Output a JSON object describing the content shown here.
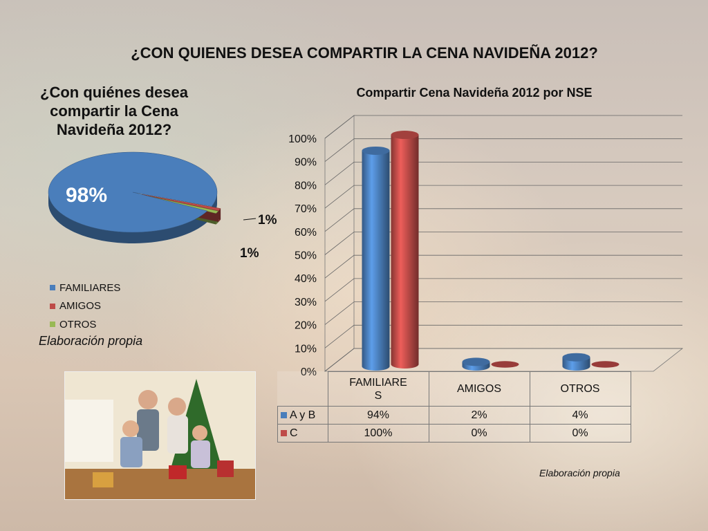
{
  "slide": {
    "title": "¿CON QUIENES DESEA COMPARTIR LA CENA NAVIDEÑA 2012?",
    "source_left": "Elaboración propia",
    "source_right": "Elaboración propia"
  },
  "colors": {
    "familiares": "#4a7ebb",
    "amigos": "#be4b48",
    "otros": "#98b954",
    "series_ab": "#4a7ebb",
    "series_c": "#be4b48"
  },
  "chart_data": [
    {
      "type": "pie",
      "title": "¿Con quiénes desea compartir la Cena Navideña 2012?",
      "categories": [
        "FAMILIARES",
        "AMIGOS",
        "OTROS"
      ],
      "values": [
        98,
        1,
        1
      ],
      "data_labels": [
        "98%",
        "1%",
        "1%"
      ],
      "legend_position": "bottom-left"
    },
    {
      "type": "bar",
      "title": "Compartir Cena Navideña 2012 por NSE",
      "categories": [
        "FAMILIARES",
        "AMIGOS",
        "OTROS"
      ],
      "category_labels": [
        "FAMILIARE\nS",
        "AMIGOS",
        "OTROS"
      ],
      "series": [
        {
          "name": "A y B",
          "values": [
            94,
            2,
            4
          ],
          "labels": [
            "94%",
            "2%",
            "4%"
          ]
        },
        {
          "name": "C",
          "values": [
            100,
            0,
            0
          ],
          "labels": [
            "100%",
            "0%",
            "0%"
          ]
        }
      ],
      "ylim": [
        0,
        100
      ],
      "yticks": [
        "0%",
        "10%",
        "20%",
        "30%",
        "40%",
        "50%",
        "60%",
        "70%",
        "80%",
        "90%",
        "100%"
      ],
      "grid": true,
      "style": "3d-cylinder",
      "data_table": true
    }
  ]
}
